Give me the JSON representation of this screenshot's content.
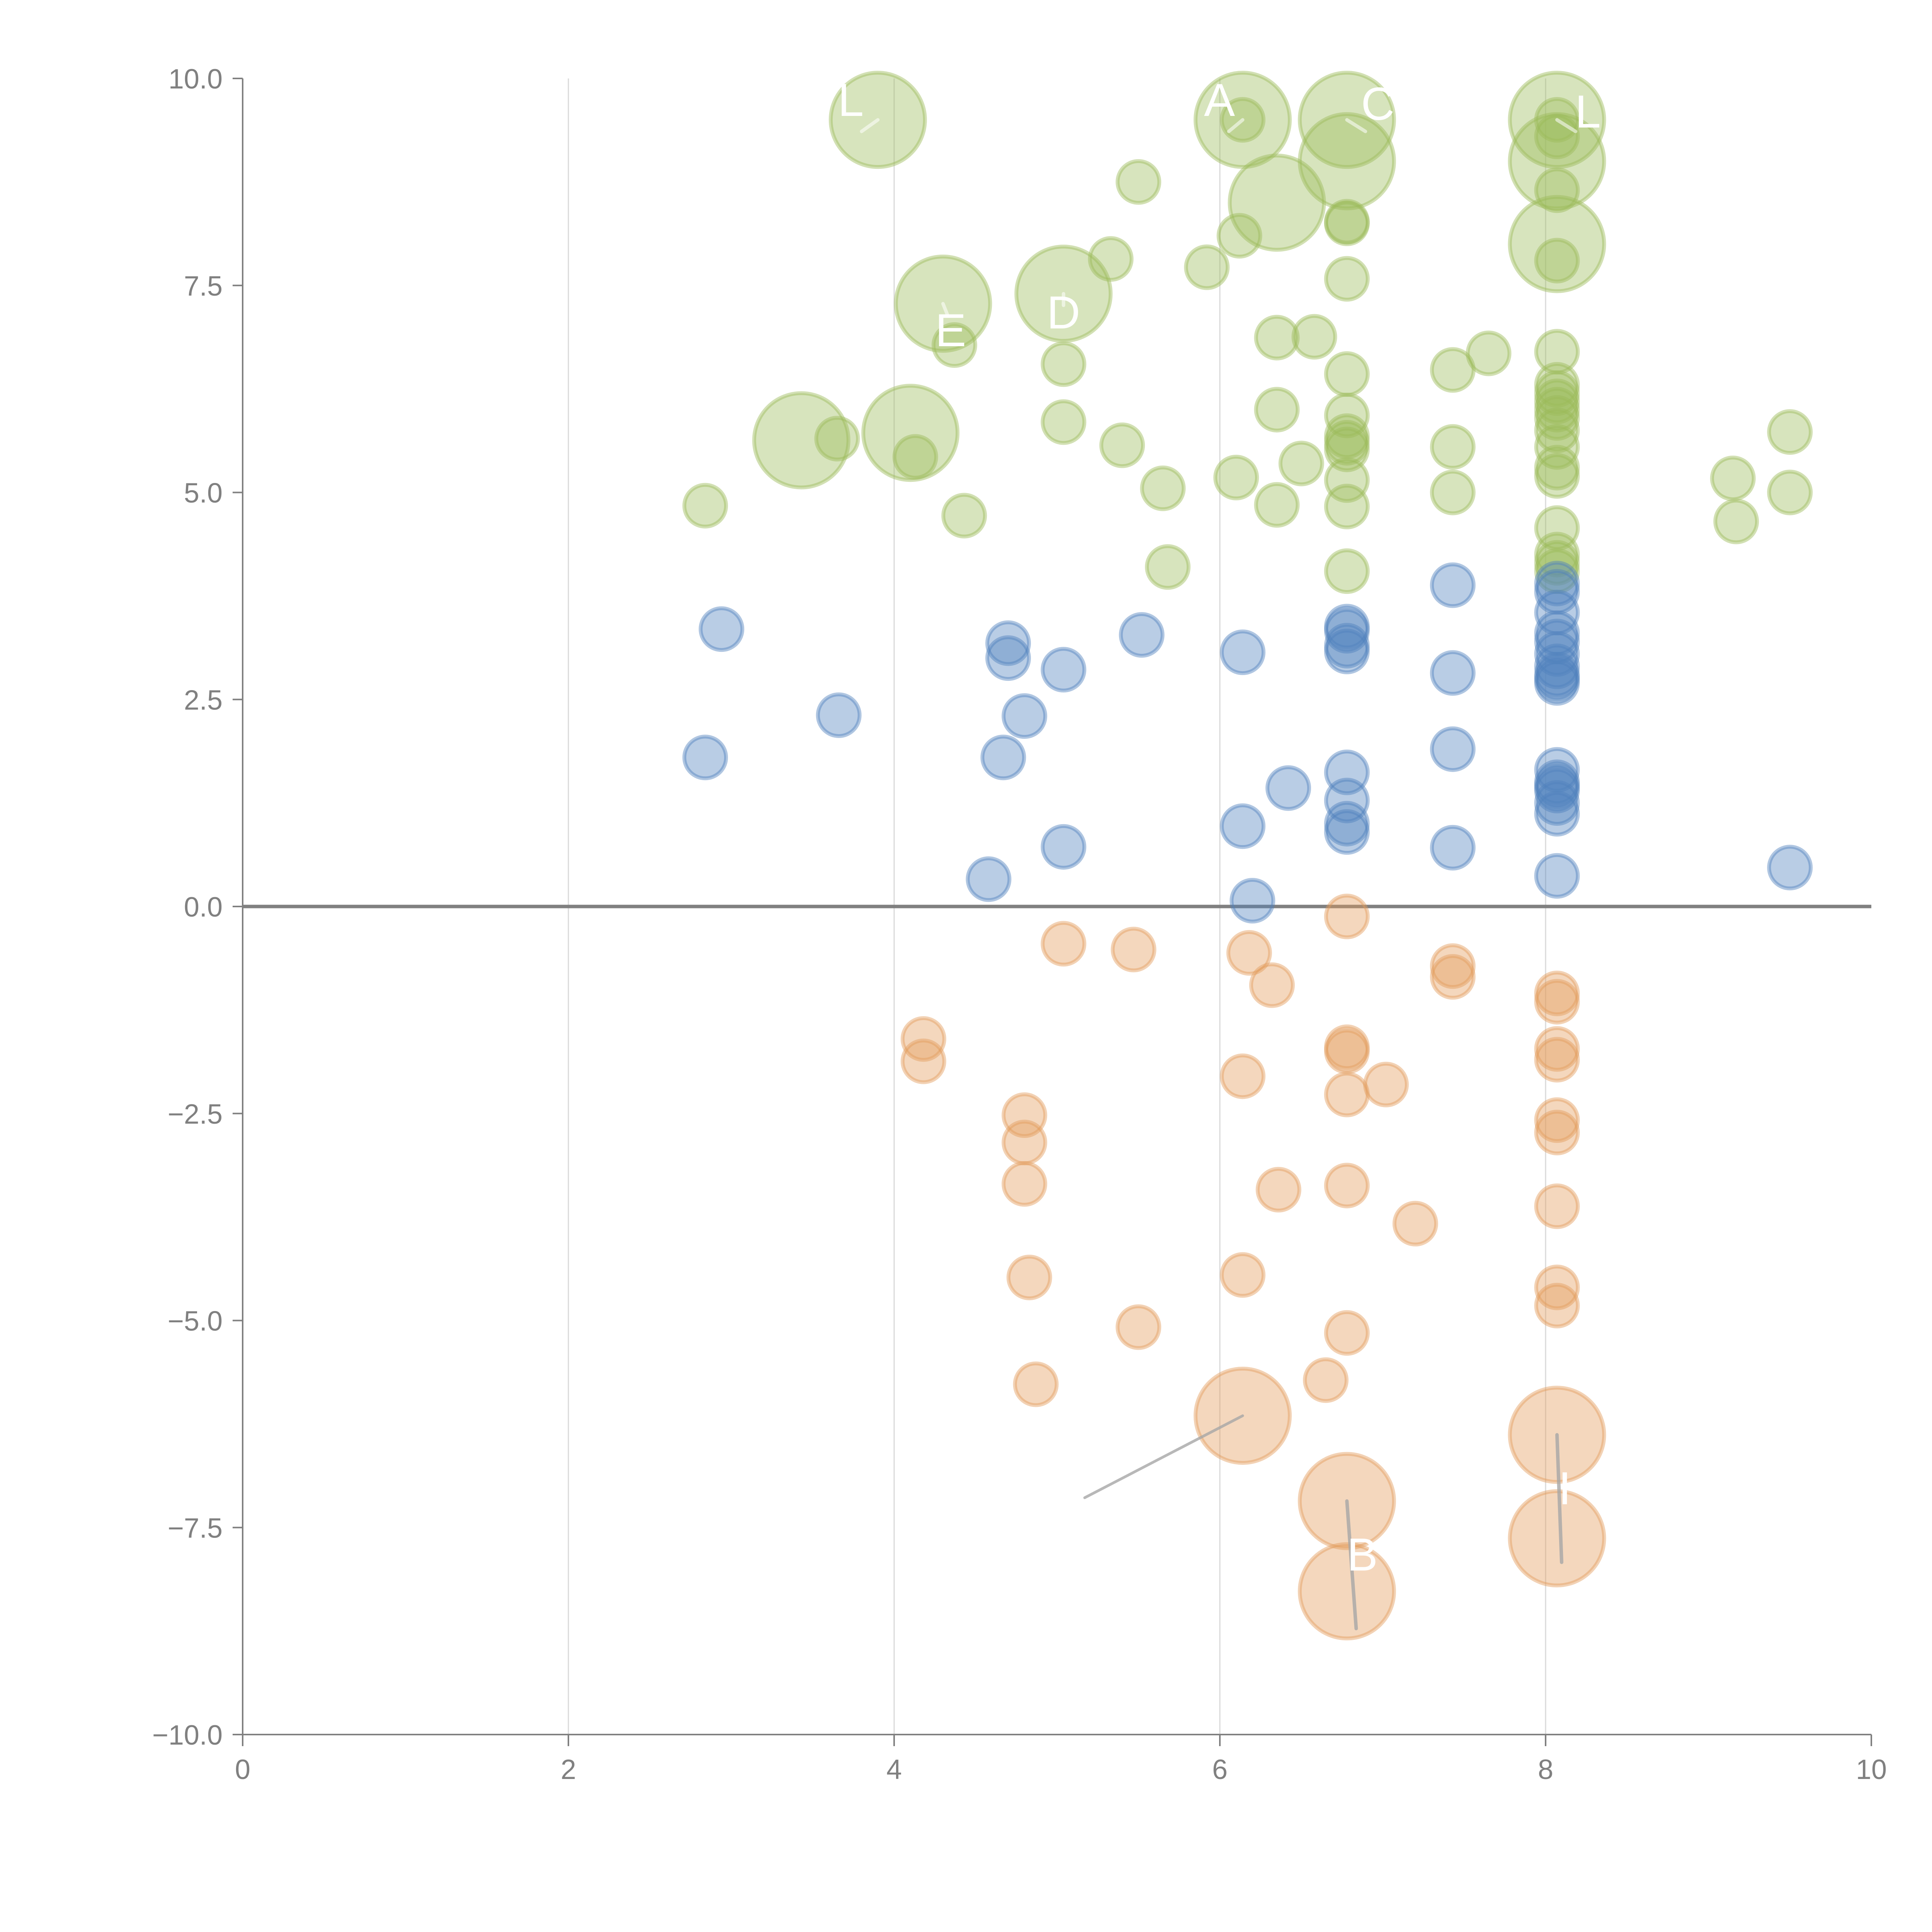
{
  "chart_data": {
    "type": "scatter",
    "subtype": "bubble",
    "title": "",
    "xlabel": "",
    "ylabel": "",
    "xlim": [
      0,
      10
    ],
    "ylim": [
      -10,
      10
    ],
    "x_ticks": [
      "0",
      "2",
      "4",
      "6",
      "8",
      "10"
    ],
    "x_tick_values": [
      0,
      2,
      4,
      6,
      8,
      10
    ],
    "y_ticks": [
      "10.0",
      "7.5",
      "5.0",
      "2.5",
      "0.0",
      "−2.5",
      "−5.0",
      "−7.5",
      "−10.0"
    ],
    "y_tick_values": [
      10,
      7.5,
      5,
      2.5,
      0,
      -2.5,
      -5,
      -7.5,
      -10
    ],
    "grid": "vertical lines at x=2,4,6,8",
    "zero_line": true,
    "legend": "none",
    "series": [
      {
        "name": "green",
        "color": "#9bbb59",
        "points": [
          [
            3.9,
            9.5,
            2
          ],
          [
            6.14,
            9.5,
            2
          ],
          [
            6.14,
            9.5,
            1
          ],
          [
            6.78,
            9.5,
            2
          ],
          [
            8.07,
            9.5,
            2
          ],
          [
            8.07,
            9.5,
            1
          ],
          [
            8.07,
            9.3,
            1
          ],
          [
            6.78,
            9.0,
            2
          ],
          [
            8.07,
            9.0,
            2
          ],
          [
            8.07,
            8.65,
            1
          ],
          [
            5.5,
            8.75,
            1
          ],
          [
            6.35,
            8.5,
            2
          ],
          [
            6.78,
            8.27,
            1
          ],
          [
            6.78,
            8.25,
            1
          ],
          [
            6.12,
            8.1,
            1
          ],
          [
            8.07,
            8.0,
            2
          ],
          [
            8.07,
            7.8,
            1
          ],
          [
            5.33,
            7.82,
            1
          ],
          [
            5.92,
            7.72,
            1
          ],
          [
            6.78,
            7.58,
            1
          ],
          [
            4.3,
            7.28,
            2
          ],
          [
            5.04,
            7.4,
            2
          ],
          [
            4.37,
            6.78,
            1
          ],
          [
            5.04,
            6.55,
            1
          ],
          [
            6.35,
            6.87,
            1
          ],
          [
            6.58,
            6.88,
            1
          ],
          [
            7.65,
            6.68,
            1
          ],
          [
            7.43,
            6.48,
            1
          ],
          [
            6.78,
            6.43,
            1
          ],
          [
            8.07,
            6.7,
            1
          ],
          [
            8.07,
            6.3,
            1
          ],
          [
            8.07,
            6.2,
            1
          ],
          [
            8.07,
            6.1,
            1
          ],
          [
            8.07,
            6.0,
            1
          ],
          [
            8.07,
            5.9,
            1
          ],
          [
            8.07,
            5.75,
            1
          ],
          [
            8.07,
            5.55,
            1
          ],
          [
            8.07,
            5.3,
            1
          ],
          [
            8.07,
            5.2,
            1
          ],
          [
            3.43,
            5.63,
            2
          ],
          [
            3.65,
            5.65,
            1
          ],
          [
            4.1,
            5.72,
            2
          ],
          [
            4.13,
            5.43,
            1
          ],
          [
            5.04,
            5.85,
            1
          ],
          [
            5.4,
            5.57,
            1
          ],
          [
            6.35,
            6.0,
            1
          ],
          [
            6.78,
            5.93,
            1
          ],
          [
            6.78,
            5.68,
            1
          ],
          [
            6.78,
            5.6,
            1
          ],
          [
            6.78,
            5.52,
            1
          ],
          [
            7.43,
            5.55,
            1
          ],
          [
            6.5,
            5.35,
            1
          ],
          [
            6.1,
            5.18,
            1
          ],
          [
            5.65,
            5.05,
            1
          ],
          [
            6.78,
            5.15,
            1
          ],
          [
            7.43,
            5.0,
            1
          ],
          [
            2.84,
            4.84,
            1
          ],
          [
            6.35,
            4.85,
            1
          ],
          [
            6.78,
            4.83,
            1
          ],
          [
            4.43,
            4.72,
            1
          ],
          [
            9.5,
            5.73,
            1
          ],
          [
            9.15,
            5.17,
            1
          ],
          [
            9.5,
            5.0,
            1
          ],
          [
            9.17,
            4.65,
            1
          ],
          [
            8.07,
            4.57,
            1
          ],
          [
            8.07,
            4.25,
            1
          ],
          [
            8.07,
            4.15,
            1
          ],
          [
            8.07,
            4.05,
            1
          ],
          [
            6.78,
            4.05,
            1
          ],
          [
            5.68,
            4.1,
            1
          ]
        ]
      },
      {
        "name": "blue",
        "color": "#4f81bd",
        "points": [
          [
            8.07,
            3.9,
            1
          ],
          [
            7.43,
            3.88,
            1
          ],
          [
            8.07,
            3.8,
            1
          ],
          [
            8.07,
            3.55,
            1
          ],
          [
            2.94,
            3.35,
            1
          ],
          [
            6.78,
            3.38,
            1
          ],
          [
            6.78,
            3.33,
            1
          ],
          [
            8.07,
            3.3,
            1
          ],
          [
            5.52,
            3.28,
            1
          ],
          [
            4.7,
            3.18,
            1
          ],
          [
            8.07,
            3.2,
            1
          ],
          [
            6.78,
            3.15,
            1
          ],
          [
            6.78,
            3.08,
            1
          ],
          [
            6.14,
            3.07,
            1
          ],
          [
            8.07,
            3.05,
            1
          ],
          [
            4.7,
            3.0,
            1
          ],
          [
            8.07,
            2.9,
            1
          ],
          [
            5.04,
            2.86,
            1
          ],
          [
            7.43,
            2.82,
            1
          ],
          [
            8.07,
            2.8,
            1
          ],
          [
            8.07,
            2.75,
            1
          ],
          [
            8.07,
            2.7,
            1
          ],
          [
            3.66,
            2.31,
            1
          ],
          [
            4.8,
            2.3,
            1
          ],
          [
            7.43,
            1.9,
            1
          ],
          [
            2.84,
            1.8,
            1
          ],
          [
            4.67,
            1.8,
            1
          ],
          [
            8.07,
            1.65,
            1
          ],
          [
            6.78,
            1.62,
            1
          ],
          [
            8.07,
            1.5,
            1
          ],
          [
            8.07,
            1.45,
            1
          ],
          [
            8.07,
            1.4,
            1
          ],
          [
            6.42,
            1.43,
            1
          ],
          [
            6.78,
            1.28,
            1
          ],
          [
            8.07,
            1.25,
            1
          ],
          [
            8.07,
            1.12,
            1
          ],
          [
            6.78,
            1.0,
            1
          ],
          [
            6.14,
            0.97,
            1
          ],
          [
            6.78,
            0.9,
            1
          ],
          [
            5.04,
            0.72,
            1
          ],
          [
            7.43,
            0.71,
            1
          ],
          [
            9.5,
            0.47,
            1
          ],
          [
            8.07,
            0.37,
            1
          ],
          [
            4.58,
            0.33,
            1
          ],
          [
            6.2,
            0.07,
            1
          ]
        ]
      },
      {
        "name": "orange",
        "color": "#e39b5b",
        "points": [
          [
            6.78,
            -0.12,
            1
          ],
          [
            5.04,
            -0.45,
            1
          ],
          [
            5.47,
            -0.52,
            1
          ],
          [
            6.18,
            -0.56,
            1
          ],
          [
            7.43,
            -0.72,
            1
          ],
          [
            7.43,
            -0.85,
            1
          ],
          [
            6.32,
            -0.95,
            1
          ],
          [
            8.07,
            -1.05,
            1
          ],
          [
            8.07,
            -1.15,
            1
          ],
          [
            4.18,
            -1.6,
            1
          ],
          [
            6.78,
            -1.7,
            1
          ],
          [
            6.78,
            -1.75,
            1
          ],
          [
            8.07,
            -1.72,
            1
          ],
          [
            8.07,
            -1.85,
            1
          ],
          [
            4.18,
            -1.87,
            1
          ],
          [
            6.14,
            -2.05,
            1
          ],
          [
            7.02,
            -2.15,
            1
          ],
          [
            6.78,
            -2.27,
            1
          ],
          [
            4.8,
            -2.52,
            1
          ],
          [
            8.07,
            -2.58,
            1
          ],
          [
            8.07,
            -2.73,
            1
          ],
          [
            4.8,
            -2.85,
            1
          ],
          [
            4.8,
            -3.35,
            1
          ],
          [
            6.78,
            -3.37,
            1
          ],
          [
            6.36,
            -3.42,
            1
          ],
          [
            8.07,
            -3.62,
            1
          ],
          [
            7.2,
            -3.83,
            1
          ],
          [
            6.14,
            -4.45,
            1
          ],
          [
            4.83,
            -4.48,
            1
          ],
          [
            8.07,
            -4.6,
            1
          ],
          [
            8.07,
            -4.82,
            1
          ],
          [
            5.5,
            -5.08,
            1
          ],
          [
            6.78,
            -5.15,
            1
          ],
          [
            6.65,
            -5.72,
            1
          ],
          [
            4.87,
            -5.77,
            1
          ],
          [
            6.14,
            -6.15,
            2
          ],
          [
            8.07,
            -6.38,
            2
          ],
          [
            6.78,
            -7.18,
            2
          ],
          [
            8.07,
            -7.63,
            2
          ],
          [
            6.78,
            -8.27,
            2
          ]
        ]
      }
    ],
    "annotations": [
      {
        "text": "L",
        "x": 3.9,
        "y": 9.5
      },
      {
        "text": "A",
        "x": 6.14,
        "y": 9.5
      },
      {
        "text": "C",
        "x": 6.78,
        "y": 9.5
      },
      {
        "text": "L",
        "x": 8.07,
        "y": 9.5
      },
      {
        "text": "E",
        "x": 4.3,
        "y": 7.28
      },
      {
        "text": "D",
        "x": 5.04,
        "y": 7.4
      },
      {
        "text": "B",
        "x": 6.78,
        "y": -7.18
      },
      {
        "text": "I",
        "x": 8.07,
        "y": -6.38
      }
    ]
  }
}
